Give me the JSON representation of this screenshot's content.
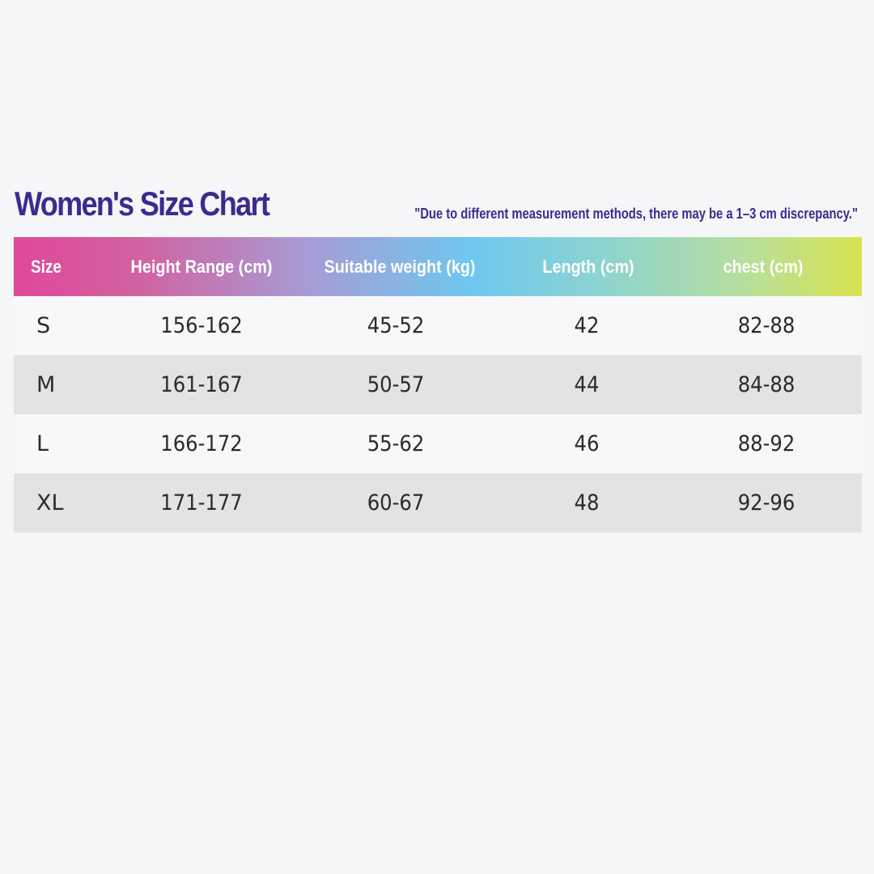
{
  "title": "Women's Size Chart",
  "note": "\"Due to different measurement methods, there may be a 1–3 cm discrepancy.\"",
  "colors": {
    "title": "#3e2a8e",
    "header_gradient": [
      "#e0489a",
      "#a89ad3",
      "#6ec8ef",
      "#b6df9e",
      "#d8e34e"
    ],
    "row_light": "#f8f8fa",
    "row_dark": "#e2e3e5"
  },
  "table": {
    "headers": [
      "Size",
      "Height Range (cm)",
      "Suitable weight (kg)",
      "Length (cm)",
      "chest (cm)"
    ],
    "rows": [
      [
        "S",
        "156-162",
        "45-52",
        "42",
        "82-88"
      ],
      [
        "M",
        "161-167",
        "50-57",
        "44",
        "84-88"
      ],
      [
        "L",
        "166-172",
        "55-62",
        "46",
        "88-92"
      ],
      [
        "XL",
        "171-177",
        "60-67",
        "48",
        "92-96"
      ]
    ]
  }
}
